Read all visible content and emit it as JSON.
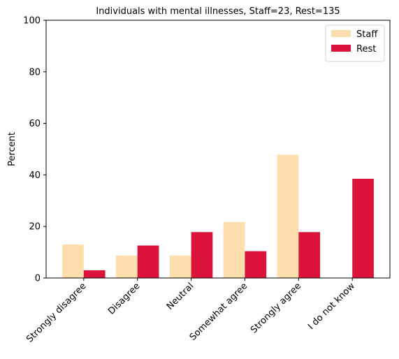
{
  "chart_data": {
    "type": "bar",
    "title": "Individuals with mental illnesses, Staff=23, Rest=135",
    "xlabel": "",
    "ylabel": "Percent",
    "ylim": [
      0,
      100
    ],
    "yticks": [
      0,
      20,
      40,
      60,
      80,
      100
    ],
    "categories": [
      "Strongly disagree",
      "Disagree",
      "Neutral",
      "Somewhat agree",
      "Strongly agree",
      "I do not know"
    ],
    "series": [
      {
        "name": "Staff",
        "color": "#FFDEAD",
        "values": [
          13.0,
          8.7,
          8.7,
          21.7,
          47.8,
          0.0
        ]
      },
      {
        "name": "Rest",
        "color": "#DC143C",
        "values": [
          3.0,
          12.6,
          17.8,
          10.4,
          17.8,
          38.5
        ]
      }
    ],
    "legend": "top-right",
    "grid": false
  }
}
